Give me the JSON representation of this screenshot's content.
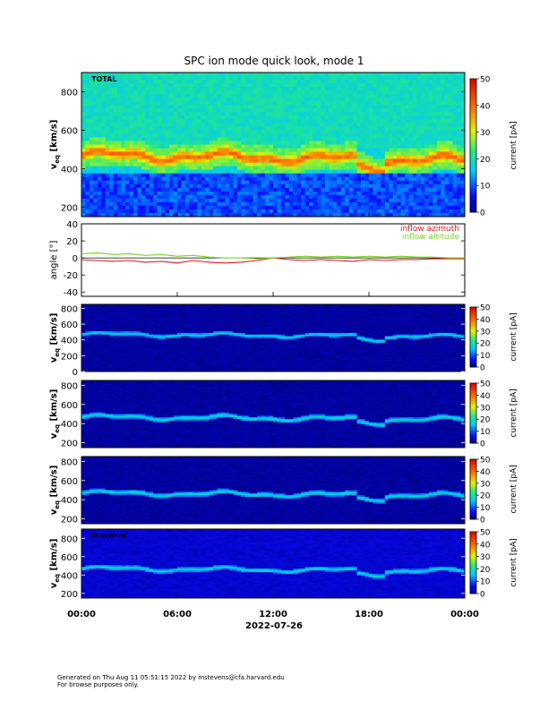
{
  "title": "SPC ion mode quick look, mode 1",
  "footer": {
    "line1": "Generated on Thu Aug 11 05:51:15 2022 by mstevens@cfa.harvard.edu",
    "line2": "For browse purposes only."
  },
  "chart_data": [
    {
      "type": "heatmap",
      "panel_label": "TOTAL",
      "ylabel": "v",
      "ylabel_sub": "eq",
      "ylabel_unit": "[km/s]",
      "ylim": [
        150,
        900
      ],
      "yticks": [
        200,
        400,
        600,
        800
      ],
      "colorbar": {
        "label": "current [pA]",
        "range": [
          0,
          50
        ],
        "ticks": [
          0,
          10,
          20,
          30,
          40,
          50
        ]
      },
      "features": {
        "core_speed_kms": 440,
        "background_level_pA": 12
      }
    },
    {
      "type": "line",
      "ylabel": "angle [°]",
      "ylim": [
        -45,
        40
      ],
      "yticks": [
        -40,
        -20,
        0,
        20,
        40
      ],
      "series": [
        {
          "name": "inflow azimuth",
          "color": "#e8181c",
          "x_hours": [
            0,
            1,
            2,
            3,
            4,
            5,
            6,
            7,
            8,
            9,
            10,
            11,
            12,
            13,
            14,
            15,
            16,
            17,
            18,
            19,
            20,
            21,
            22,
            23,
            24
          ],
          "values": [
            -2,
            -3,
            -4,
            -3,
            -5,
            -4,
            -6,
            -3,
            -5,
            -6,
            -5,
            -3,
            0,
            -2,
            -3,
            -2,
            -3,
            -4,
            -2,
            -3,
            -2,
            -2,
            -1,
            -1,
            -1
          ]
        },
        {
          "name": "inflow altitude",
          "color": "#7cd31c",
          "x_hours": [
            0,
            1,
            2,
            3,
            4,
            5,
            6,
            7,
            8,
            9,
            10,
            11,
            12,
            13,
            14,
            15,
            16,
            17,
            18,
            19,
            20,
            21,
            22,
            23,
            24
          ],
          "values": [
            5,
            6,
            4,
            5,
            3,
            4,
            2,
            3,
            1,
            0,
            0,
            -1,
            0,
            1,
            2,
            1,
            2,
            1,
            2,
            1,
            2,
            1,
            1,
            0,
            0
          ]
        }
      ]
    },
    {
      "type": "heatmap",
      "panel_label": "",
      "ylabel": "v",
      "ylabel_sub": "eq",
      "ylabel_unit": "[km/s]",
      "ylim": [
        0,
        850
      ],
      "yticks": [
        0,
        200,
        400,
        600,
        800
      ],
      "colorbar": {
        "label": "current [pA]",
        "range": [
          0,
          50
        ],
        "ticks": [
          0,
          10,
          20,
          30,
          40,
          50
        ]
      }
    },
    {
      "type": "heatmap",
      "panel_label": "",
      "ylabel": "v",
      "ylabel_sub": "eq",
      "ylabel_unit": "[km/s]",
      "ylim": [
        150,
        850
      ],
      "yticks": [
        200,
        400,
        600,
        800
      ],
      "colorbar": {
        "label": "current [pA]",
        "range": [
          0,
          50
        ],
        "ticks": [
          0,
          10,
          20,
          30,
          40,
          50
        ]
      }
    },
    {
      "type": "heatmap",
      "panel_label": "",
      "ylabel": "v",
      "ylabel_sub": "eq",
      "ylabel_unit": "[km/s]",
      "ylim": [
        150,
        850
      ],
      "yticks": [
        200,
        400,
        600,
        800
      ],
      "colorbar": {
        "label": "current [pA]",
        "range": [
          0,
          50
        ],
        "ticks": [
          0,
          10,
          20,
          30,
          40,
          50
        ]
      }
    },
    {
      "type": "heatmap",
      "panel_label": "D sensor",
      "ylabel": "v",
      "ylabel_sub": "eq",
      "ylabel_unit": "[km/s]",
      "ylim": [
        150,
        900
      ],
      "yticks": [
        200,
        400,
        600,
        800
      ],
      "colorbar": {
        "label": "current [pA]",
        "range": [
          0,
          50
        ],
        "ticks": [
          0,
          10,
          20,
          30,
          40,
          50
        ]
      }
    }
  ],
  "xaxis": {
    "ticks": [
      "00:00",
      "06:00",
      "12:00",
      "18:00",
      "00:00"
    ],
    "tick_hours": [
      0,
      6,
      12,
      18,
      24
    ],
    "date": "2022-07-26"
  }
}
